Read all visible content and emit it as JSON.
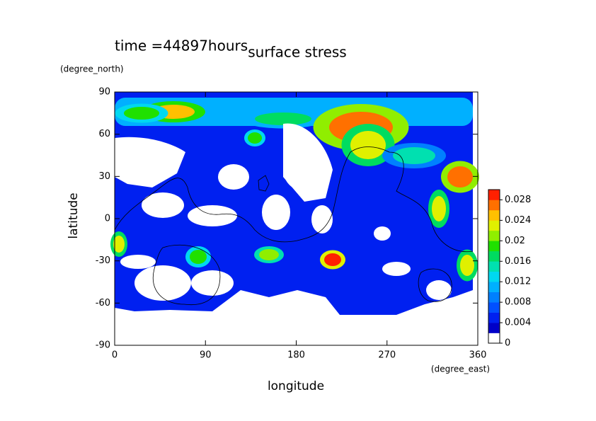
{
  "chart_data": {
    "type": "contour",
    "title": "surface stress",
    "time_label": "time =44897hours",
    "x_label": "longitude",
    "x_unit": "(degree_east)",
    "y_label": "latitude",
    "y_unit": "(degree_north)",
    "xlim": [
      0,
      360
    ],
    "xticks": [
      0,
      90,
      180,
      270,
      360
    ],
    "ylim": [
      -90,
      90
    ],
    "yticks": [
      -90,
      -60,
      -30,
      0,
      30,
      60,
      90
    ],
    "colorbar": {
      "lim": [
        0,
        0.03
      ],
      "ticks": [
        0,
        0.004,
        0.008,
        0.012,
        0.016,
        0.02,
        0.024,
        0.028
      ],
      "colors": [
        "#ffffff",
        "#0000c8",
        "#0020f0",
        "#0050ff",
        "#0080ff",
        "#00b0ff",
        "#00d8f0",
        "#00e0b0",
        "#00dc60",
        "#20e000",
        "#90ee00",
        "#e0f000",
        "#ffc000",
        "#ff7000",
        "#ff2000"
      ]
    }
  }
}
